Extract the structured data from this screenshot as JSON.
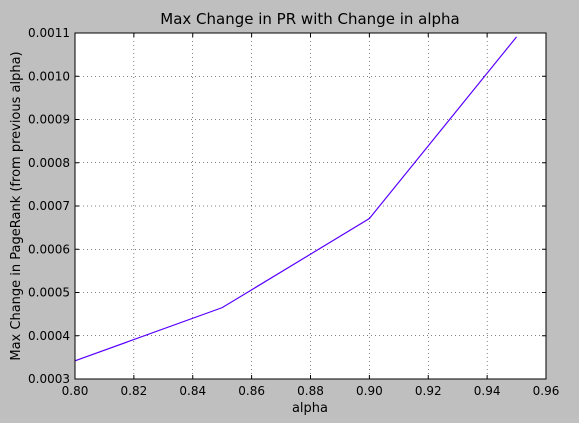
{
  "chart_data": {
    "type": "line",
    "title": "Max Change in PR with Change in alpha",
    "xlabel": "alpha",
    "ylabel": "Max Change in PageRank (from previous alpha)",
    "xlim": [
      0.8,
      0.96
    ],
    "ylim": [
      0.0003,
      0.0011
    ],
    "xticks": [
      0.8,
      0.82,
      0.84,
      0.86,
      0.88,
      0.9,
      0.92,
      0.94,
      0.96
    ],
    "xtick_labels": [
      "0.80",
      "0.82",
      "0.84",
      "0.86",
      "0.88",
      "0.90",
      "0.92",
      "0.94",
      "0.96"
    ],
    "yticks": [
      0.0003,
      0.0004,
      0.0005,
      0.0006,
      0.0007,
      0.0008,
      0.0009,
      0.001,
      0.0011
    ],
    "ytick_labels": [
      "0.0003",
      "0.0004",
      "0.0005",
      "0.0006",
      "0.0007",
      "0.0008",
      "0.0009",
      "0.0010",
      "0.0011"
    ],
    "grid": true,
    "series": [
      {
        "color": "#5a00ff",
        "x": [
          0.8,
          0.85,
          0.9,
          0.95
        ],
        "y": [
          0.000342,
          0.000465,
          0.000671,
          0.001091
        ]
      }
    ]
  }
}
